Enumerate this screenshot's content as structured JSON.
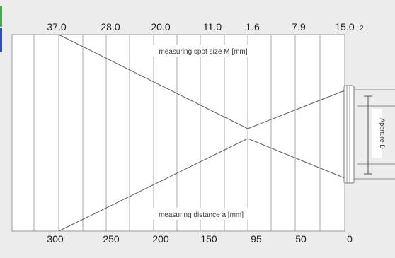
{
  "diagram": {
    "spot_size_caption": "measuring spot size M [mm]",
    "distance_caption": "measuring distance a [mm]",
    "aperture_label": "Aperture D",
    "superscript": "2",
    "spot_sizes": [
      "37.0",
      "28.0",
      "20.0",
      "11.0",
      "1.6",
      "7.9",
      "15.0"
    ],
    "distances": [
      "300",
      "250",
      "200",
      "150",
      "95",
      "50",
      "0"
    ],
    "colors": {
      "background": "#ececec",
      "plot_area": "#ffffff",
      "grid": "#a8a8a8",
      "beam": "#5c5c5c",
      "left_tab_green": "#3cb44b",
      "left_tab_blue": "#2f4fd0"
    }
  }
}
